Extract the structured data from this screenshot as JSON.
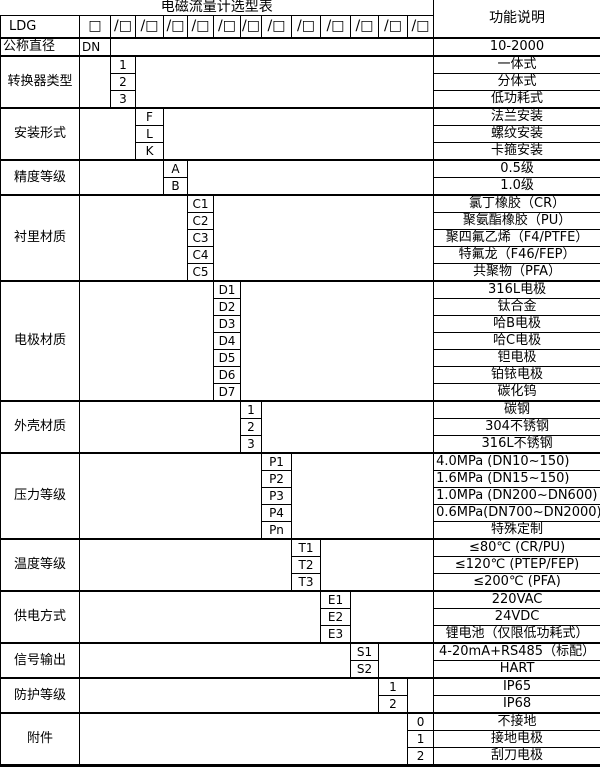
{
  "title": "电磁流量计选型表",
  "header": {
    "function_col": "功能说明"
  },
  "model_row": {
    "label": "LDG",
    "box_symbol": "□",
    "slash_box_symbol": "/□",
    "slash_box_count": 12
  },
  "diameter_row": {
    "label": "公称直径",
    "code": "DN",
    "desc": "10-2000"
  },
  "blocks": [
    {
      "id": "transducer-type",
      "label": "转换器类型",
      "col": 1,
      "options": [
        {
          "code": "1",
          "desc": "一体式"
        },
        {
          "code": "2",
          "desc": "分体式"
        },
        {
          "code": "3",
          "desc": "低功耗式"
        }
      ]
    },
    {
      "id": "installation",
      "label": "安装形式",
      "col": 2,
      "options": [
        {
          "code": "F",
          "desc": "法兰安装"
        },
        {
          "code": "L",
          "desc": "螺纹安装"
        },
        {
          "code": "K",
          "desc": "卡箍安装"
        }
      ]
    },
    {
      "id": "accuracy",
      "label": "精度等级",
      "col": 3,
      "options": [
        {
          "code": "A",
          "desc": "0.5级"
        },
        {
          "code": "B",
          "desc": "1.0级"
        }
      ]
    },
    {
      "id": "lining",
      "label": "衬里材质",
      "col": 4,
      "options": [
        {
          "code": "C1",
          "desc": "氯丁橡胶（CR）"
        },
        {
          "code": "C2",
          "desc": "聚氨酯橡胶（PU）"
        },
        {
          "code": "C3",
          "desc": "聚四氟乙烯（F4/PTFE）"
        },
        {
          "code": "C4",
          "desc": "特氟龙（F46/FEP）"
        },
        {
          "code": "C5",
          "desc": "共聚物（PFA）"
        }
      ]
    },
    {
      "id": "electrode",
      "label": "电极材质",
      "col": 5,
      "options": [
        {
          "code": "D1",
          "desc": "316L电极"
        },
        {
          "code": "D2",
          "desc": "钛合金"
        },
        {
          "code": "D3",
          "desc": "哈B电极"
        },
        {
          "code": "D4",
          "desc": "哈C电极"
        },
        {
          "code": "D5",
          "desc": "钽电极"
        },
        {
          "code": "D6",
          "desc": "铂铱电极"
        },
        {
          "code": "D7",
          "desc": "碳化钨"
        }
      ]
    },
    {
      "id": "housing",
      "label": "外壳材质",
      "col": 6,
      "options": [
        {
          "code": "1",
          "desc": "碳钢"
        },
        {
          "code": "2",
          "desc": "304不锈钢"
        },
        {
          "code": "3",
          "desc": "316L不锈钢"
        }
      ]
    },
    {
      "id": "pressure",
      "label": "压力等级",
      "col": 7,
      "options": [
        {
          "code": "P1",
          "desc": "4.0MPa (DN10~150)"
        },
        {
          "code": "P2",
          "desc": "1.6MPa (DN15~150)"
        },
        {
          "code": "P3",
          "desc": "1.0MPa (DN200~DN600)"
        },
        {
          "code": "P4",
          "desc": "0.6MPa(DN700~DN2000)"
        },
        {
          "code": "Pn",
          "desc": "特殊定制"
        }
      ]
    },
    {
      "id": "temperature",
      "label": "温度等级",
      "col": 8,
      "options": [
        {
          "code": "T1",
          "desc": "≤80℃ (CR/PU)"
        },
        {
          "code": "T2",
          "desc": "≤120℃ (PTEP/FEP)"
        },
        {
          "code": "T3",
          "desc": "≤200℃ (PFA)"
        }
      ]
    },
    {
      "id": "power",
      "label": "供电方式",
      "col": 9,
      "options": [
        {
          "code": "E1",
          "desc": "220VAC"
        },
        {
          "code": "E2",
          "desc": "24VDC"
        },
        {
          "code": "E3",
          "desc": "锂电池（仅限低功耗式）"
        }
      ]
    },
    {
      "id": "signal",
      "label": "信号输出",
      "col": 10,
      "options": [
        {
          "code": "S1",
          "desc": "4-20mA+RS485（标配）"
        },
        {
          "code": "S2",
          "desc": "HART"
        }
      ]
    },
    {
      "id": "protection",
      "label": "防护等级",
      "col": 11,
      "options": [
        {
          "code": "1",
          "desc": "IP65"
        },
        {
          "code": "2",
          "desc": "IP68"
        }
      ]
    },
    {
      "id": "accessories",
      "label": "附件",
      "col": 12,
      "options": [
        {
          "code": "0",
          "desc": "不接地"
        },
        {
          "code": "1",
          "desc": "接地电极"
        },
        {
          "code": "2",
          "desc": "刮刀电极"
        }
      ]
    }
  ]
}
